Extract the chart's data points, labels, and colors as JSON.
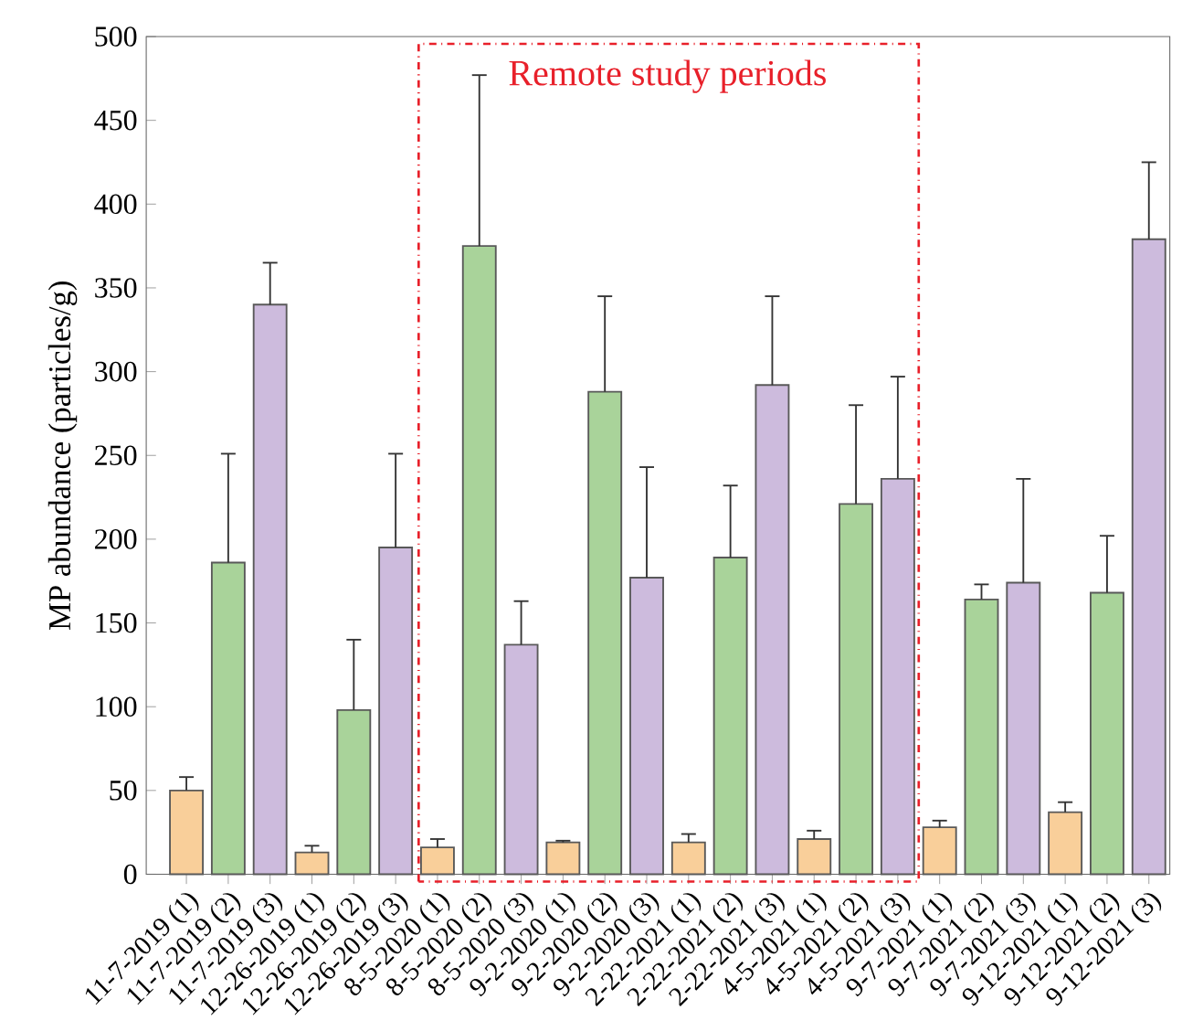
{
  "chart_data": {
    "type": "bar",
    "ylabel": "MP abundance (particles/g)",
    "categories": [
      "11-7-2019 (1)",
      "11-7-2019 (2)",
      "11-7-2019 (3)",
      "12-26-2019 (1)",
      "12-26-2019 (2)",
      "12-26-2019 (3)",
      "8-5-2020 (1)",
      "8-5-2020 (2)",
      "8-5-2020 (3)",
      "9-2-2020 (1)",
      "9-2-2020 (2)",
      "9-2-2020 (3)",
      "2-22-2021 (1)",
      "2-22-2021 (2)",
      "2-22-2021 (3)",
      "4-5-2021 (1)",
      "4-5-2021 (2)",
      "4-5-2021 (3)",
      "9-7-2021 (1)",
      "9-7-2021 (2)",
      "9-7-2021 (3)",
      "9-12-2021 (1)",
      "9-12-2021 (2)",
      "9-12-2021 (3)"
    ],
    "values": [
      50,
      186,
      340,
      13,
      98,
      195,
      16,
      375,
      137,
      19,
      288,
      177,
      19,
      189,
      292,
      21,
      221,
      236,
      28,
      164,
      174,
      37,
      168,
      379
    ],
    "errors": [
      [
        50,
        58
      ],
      [
        186,
        251
      ],
      [
        340,
        365
      ],
      [
        13,
        17
      ],
      [
        98,
        140
      ],
      [
        195,
        251
      ],
      [
        16,
        21
      ],
      [
        375,
        477
      ],
      [
        137,
        163
      ],
      [
        19,
        20
      ],
      [
        288,
        345
      ],
      [
        177,
        243
      ],
      [
        19,
        24
      ],
      [
        189,
        232
      ],
      [
        292,
        345
      ],
      [
        21,
        26
      ],
      [
        221,
        280
      ],
      [
        236,
        297
      ],
      [
        28,
        32
      ],
      [
        164,
        173
      ],
      [
        174,
        236
      ],
      [
        37,
        43
      ],
      [
        168,
        202
      ],
      [
        379,
        425
      ]
    ],
    "colors": [
      "#f9cf9a",
      "#a9d39a",
      "#cdbbdd",
      "#f9cf9a",
      "#a9d39a",
      "#cdbbdd",
      "#f9cf9a",
      "#a9d39a",
      "#cdbbdd",
      "#f9cf9a",
      "#a9d39a",
      "#cdbbdd",
      "#f9cf9a",
      "#a9d39a",
      "#cdbbdd",
      "#f9cf9a",
      "#a9d39a",
      "#cdbbdd",
      "#f9cf9a",
      "#a9d39a",
      "#cdbbdd",
      "#f9cf9a",
      "#a9d39a",
      "#cdbbdd"
    ],
    "ylim": [
      0,
      500
    ],
    "yticks": [
      0,
      50,
      100,
      150,
      200,
      250,
      300,
      350,
      400,
      450,
      500
    ],
    "annotations": [
      "Remote study periods"
    ]
  }
}
